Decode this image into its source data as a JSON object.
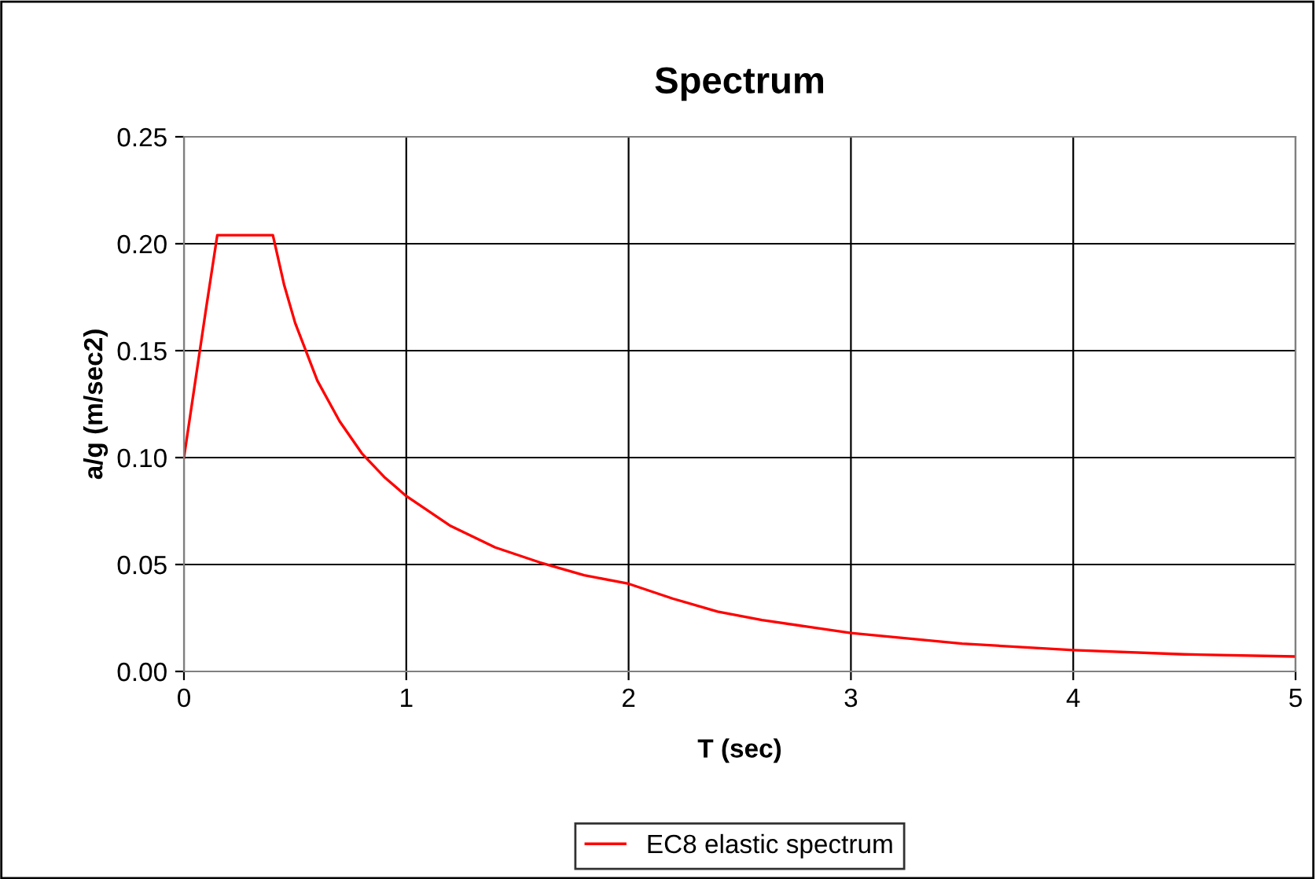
{
  "chart_data": {
    "type": "line",
    "title": "Spectrum",
    "xlabel": "T (sec)",
    "ylabel": "a/g (m/sec2)",
    "x": [
      0,
      0.05,
      0.1,
      0.15,
      0.4,
      0.45,
      0.5,
      0.6,
      0.7,
      0.8,
      0.9,
      1,
      1.2,
      1.4,
      1.6,
      1.8,
      2,
      2.2,
      2.4,
      2.6,
      2.8,
      3,
      3.5,
      4,
      4.5,
      5
    ],
    "series": [
      {
        "name": "EC8 elastic spectrum",
        "color": "#ff0000",
        "values": [
          0.1,
          0.135,
          0.17,
          0.204,
          0.204,
          0.181,
          0.163,
          0.136,
          0.117,
          0.102,
          0.091,
          0.082,
          0.068,
          0.058,
          0.051,
          0.045,
          0.041,
          0.034,
          0.028,
          0.024,
          0.021,
          0.018,
          0.013,
          0.01,
          0.008,
          0.007
        ]
      }
    ],
    "xlim": [
      0,
      5
    ],
    "xticks": [
      0,
      1,
      2,
      3,
      4,
      5
    ],
    "ylim": [
      0,
      0.25
    ],
    "yticks": [
      {
        "value": 0,
        "label": "0.00"
      },
      {
        "value": 0.05,
        "label": "0.05"
      },
      {
        "value": 0.1,
        "label": "0.10"
      },
      {
        "value": 0.15,
        "label": "0.15"
      },
      {
        "value": 0.2,
        "label": "0.20"
      },
      {
        "value": 0.25,
        "label": "0.25"
      }
    ],
    "grid": true,
    "legend": "bottom",
    "line_style": "solid",
    "marker": "none"
  }
}
